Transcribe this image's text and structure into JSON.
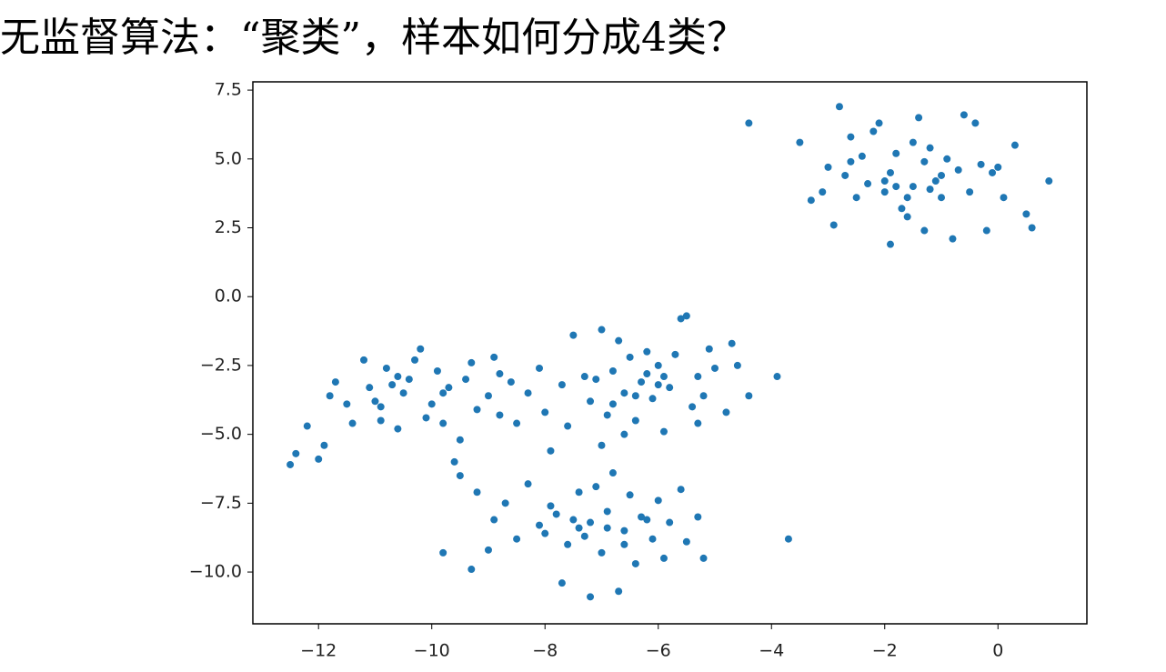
{
  "chart_data": {
    "type": "scatter",
    "title": "无监督算法：“聚类”，样本如何分成4类？",
    "color": "#1f77b4",
    "x": [
      -4.4,
      -3.5,
      -3.3,
      -3.0,
      -2.9,
      -2.8,
      -2.6,
      -2.7,
      -2.4,
      -2.2,
      -2.1,
      -2.3,
      -2.0,
      -1.9,
      -1.9,
      -1.8,
      -1.7,
      -1.6,
      -1.5,
      -1.4,
      -1.3,
      -1.3,
      -1.2,
      -1.1,
      -1.0,
      -0.9,
      -0.8,
      -0.7,
      -0.6,
      -0.5,
      -0.4,
      -0.2,
      -0.1,
      0.1,
      0.3,
      0.5,
      0.6,
      0.9,
      -2.0,
      -1.8,
      -1.6,
      -1.2,
      -1.0,
      -2.5,
      -3.1,
      -0.3,
      -1.5,
      -2.6,
      0.0,
      -12.5,
      -12.4,
      -12.2,
      -12.0,
      -11.9,
      -11.8,
      -11.7,
      -11.5,
      -11.4,
      -11.2,
      -11.0,
      -10.8,
      -10.9,
      -10.7,
      -10.6,
      -10.5,
      -10.3,
      -10.2,
      -10.1,
      -10.0,
      -9.9,
      -9.8,
      -9.7,
      -9.6,
      -9.5,
      -9.4,
      -9.3,
      -9.2,
      -9.0,
      -8.9,
      -8.8,
      -8.6,
      -8.5,
      -8.3,
      -8.1,
      -8.0,
      -7.9,
      -7.7,
      -10.4,
      -11.1,
      -9.2,
      -9.5,
      -8.8,
      -10.6,
      -9.8,
      -10.9,
      -7.5,
      -7.3,
      -7.2,
      -7.1,
      -7.0,
      -6.9,
      -6.8,
      -6.7,
      -6.6,
      -6.5,
      -6.4,
      -6.3,
      -6.2,
      -6.1,
      -6.0,
      -5.9,
      -5.8,
      -5.7,
      -5.6,
      -5.5,
      -5.4,
      -5.3,
      -5.2,
      -5.1,
      -5.0,
      -4.8,
      -4.7,
      -4.6,
      -4.4,
      -3.9,
      -7.0,
      -6.6,
      -6.0,
      -6.4,
      -5.9,
      -6.8,
      -7.6,
      -5.3,
      -6.2,
      -9.8,
      -9.3,
      -9.0,
      -8.9,
      -8.7,
      -8.5,
      -8.3,
      -8.1,
      -7.9,
      -7.7,
      -7.6,
      -7.5,
      -7.4,
      -7.3,
      -7.2,
      -7.1,
      -7.0,
      -6.9,
      -6.8,
      -6.7,
      -6.6,
      -6.5,
      -6.4,
      -6.3,
      -6.1,
      -6.0,
      -5.9,
      -5.8,
      -5.6,
      -5.5,
      -5.3,
      -5.2,
      -3.7,
      -7.8,
      -7.2,
      -6.9,
      -6.2,
      -7.4,
      -6.6,
      -8.0
    ],
    "values": [
      6.3,
      5.6,
      3.5,
      4.7,
      2.6,
      6.9,
      5.8,
      4.4,
      5.1,
      6.0,
      6.3,
      4.1,
      3.8,
      4.5,
      1.9,
      5.2,
      3.2,
      2.9,
      4.0,
      6.5,
      4.9,
      2.4,
      5.4,
      4.2,
      3.6,
      5.0,
      2.1,
      4.6,
      6.6,
      3.8,
      6.3,
      2.4,
      4.5,
      3.6,
      5.5,
      3.0,
      2.5,
      4.2,
      4.2,
      4.0,
      3.6,
      3.9,
      4.4,
      3.6,
      3.8,
      4.8,
      5.6,
      4.9,
      4.7,
      -6.1,
      -5.7,
      -4.7,
      -5.9,
      -5.4,
      -3.6,
      -3.1,
      -3.9,
      -4.6,
      -2.3,
      -3.8,
      -2.6,
      -4.5,
      -3.2,
      -4.8,
      -3.5,
      -2.3,
      -1.9,
      -4.4,
      -3.9,
      -2.7,
      -4.6,
      -3.3,
      -6.0,
      -5.2,
      -3.0,
      -2.4,
      -4.1,
      -3.6,
      -2.2,
      -4.3,
      -3.1,
      -4.6,
      -3.5,
      -2.6,
      -4.2,
      -5.6,
      -3.2,
      -3.0,
      -3.3,
      -7.1,
      -6.5,
      -2.8,
      -2.9,
      -3.5,
      -4.0,
      -1.4,
      -2.9,
      -3.8,
      -3.0,
      -1.2,
      -4.3,
      -2.7,
      -1.6,
      -3.5,
      -2.2,
      -4.5,
      -3.1,
      -2.0,
      -3.7,
      -2.5,
      -4.9,
      -3.3,
      -2.1,
      -0.8,
      -0.7,
      -4.0,
      -2.9,
      -3.6,
      -1.9,
      -2.6,
      -4.2,
      -1.7,
      -2.5,
      -3.6,
      -2.9,
      -5.4,
      -5.0,
      -3.2,
      -3.6,
      -2.9,
      -3.9,
      -4.7,
      -4.6,
      -2.8,
      -9.3,
      -9.9,
      -9.2,
      -8.1,
      -7.5,
      -8.8,
      -6.8,
      -8.3,
      -7.6,
      -10.4,
      -9.0,
      -8.1,
      -7.1,
      -8.7,
      -10.9,
      -6.9,
      -9.3,
      -7.8,
      -6.4,
      -10.7,
      -8.5,
      -7.2,
      -9.7,
      -8.0,
      -8.8,
      -7.4,
      -9.5,
      -8.2,
      -7.0,
      -8.9,
      -8.0,
      -9.5,
      -8.8,
      -7.9,
      -8.2,
      -8.4,
      -8.1,
      -8.4,
      -9.0,
      -8.6
    ],
    "xlim": [
      -13.16,
      1.57
    ],
    "ylim": [
      -11.88,
      7.8
    ],
    "xticks": [
      {
        "value": -12,
        "label": "−12"
      },
      {
        "value": -10,
        "label": "−10"
      },
      {
        "value": -8,
        "label": "−8"
      },
      {
        "value": -6,
        "label": "−6"
      },
      {
        "value": -4,
        "label": "−4"
      },
      {
        "value": -2,
        "label": "−2"
      },
      0
    ],
    "yticks": [
      {
        "value": -10,
        "label": "−10.0"
      },
      {
        "value": -7.5,
        "label": "−7.5"
      },
      {
        "value": -5,
        "label": "−5.0"
      },
      {
        "value": -2.5,
        "label": "−2.5"
      },
      {
        "value": 0,
        "label": "0.0"
      },
      2.5,
      {
        "value": 5,
        "label": "5.0"
      },
      7.5
    ]
  }
}
